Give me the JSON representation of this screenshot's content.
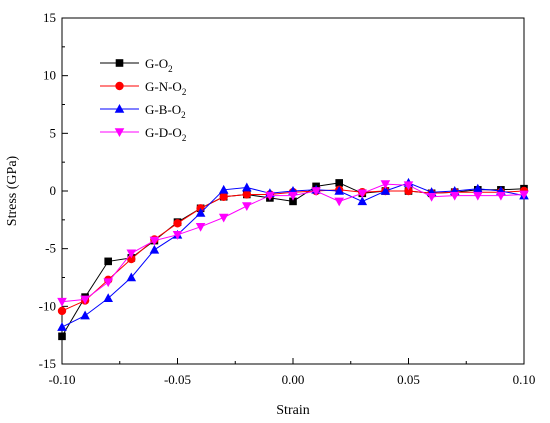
{
  "chart_data": {
    "type": "line",
    "xlabel": "Strain",
    "ylabel": "Stress (GPa)",
    "xlim": [
      -0.1,
      0.1
    ],
    "ylim": [
      -15,
      15
    ],
    "xticks": [
      "-0.10",
      "-0.05",
      "0.00",
      "0.05",
      "0.10"
    ],
    "yticks": [
      "-15",
      "-10",
      "-5",
      "0",
      "5",
      "10",
      "15"
    ],
    "legend_position": "top-left",
    "series": [
      {
        "name": "G-O2",
        "label_main": "G-O",
        "label_sub": "2",
        "color": "#000000",
        "marker": "square",
        "x": [
          -0.1,
          -0.09,
          -0.08,
          -0.07,
          -0.06,
          -0.05,
          -0.04,
          -0.03,
          -0.02,
          -0.01,
          0.0,
          0.01,
          0.02,
          0.03,
          0.04,
          0.05,
          0.06,
          0.07,
          0.08,
          0.09,
          0.1
        ],
        "y": [
          -12.6,
          -9.2,
          -6.1,
          -5.8,
          -4.3,
          -2.7,
          -1.5,
          -0.5,
          -0.3,
          -0.6,
          -0.9,
          0.4,
          0.7,
          -0.2,
          0.0,
          0.0,
          -0.2,
          -0.1,
          0.1,
          0.1,
          0.2
        ]
      },
      {
        "name": "G-N-O2",
        "label_main": "G-N-O",
        "label_sub": "2",
        "color": "#ff0000",
        "marker": "circle",
        "x": [
          -0.1,
          -0.09,
          -0.08,
          -0.07,
          -0.06,
          -0.05,
          -0.04,
          -0.03,
          -0.02,
          -0.01,
          0.0,
          0.01,
          0.02,
          0.03,
          0.04,
          0.05,
          0.06,
          0.07,
          0.08,
          0.09,
          0.1
        ],
        "y": [
          -10.4,
          -9.5,
          -7.7,
          -5.9,
          -4.2,
          -2.8,
          -1.5,
          -0.5,
          -0.3,
          -0.3,
          -0.1,
          0.0,
          0.1,
          -0.1,
          0.0,
          0.0,
          -0.2,
          -0.1,
          -0.1,
          -0.1,
          0.0
        ]
      },
      {
        "name": "G-B-O2",
        "label_main": "G-B-O",
        "label_sub": "2",
        "color": "#0000ff",
        "marker": "triangle-up",
        "x": [
          -0.1,
          -0.09,
          -0.08,
          -0.07,
          -0.06,
          -0.05,
          -0.04,
          -0.03,
          -0.02,
          -0.01,
          0.0,
          0.01,
          0.02,
          0.03,
          0.04,
          0.05,
          0.06,
          0.07,
          0.08,
          0.09,
          0.1
        ],
        "y": [
          -11.8,
          -10.8,
          -9.3,
          -7.5,
          -5.1,
          -3.8,
          -1.9,
          0.1,
          0.3,
          -0.2,
          0.0,
          0.1,
          0.0,
          -0.9,
          0.0,
          0.7,
          -0.1,
          0.0,
          0.2,
          0.0,
          -0.4
        ]
      },
      {
        "name": "G-D-O2",
        "label_main": "G-D-O",
        "label_sub": "2",
        "color": "#ff00ff",
        "marker": "triangle-down",
        "x": [
          -0.1,
          -0.09,
          -0.08,
          -0.07,
          -0.06,
          -0.05,
          -0.04,
          -0.03,
          -0.02,
          -0.01,
          0.0,
          0.01,
          0.02,
          0.03,
          0.04,
          0.05,
          0.06,
          0.07,
          0.08,
          0.09,
          0.1
        ],
        "y": [
          -9.6,
          -9.4,
          -7.9,
          -5.4,
          -4.3,
          -3.8,
          -3.1,
          -2.3,
          -1.3,
          -0.4,
          -0.4,
          0.0,
          -0.9,
          -0.2,
          0.6,
          0.5,
          -0.5,
          -0.4,
          -0.4,
          -0.4,
          -0.3
        ]
      }
    ]
  }
}
